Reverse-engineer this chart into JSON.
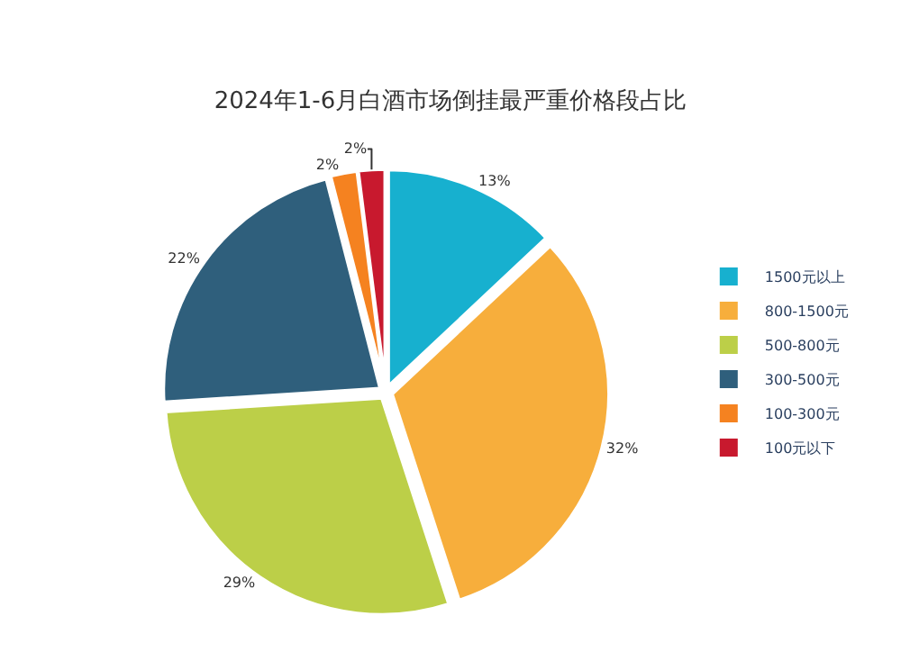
{
  "chart_data": {
    "type": "pie",
    "title": "2024年1-6月白酒市场倒挂最严重价格段占比",
    "categories": [
      "1500元以上",
      "800-1500元",
      "500-800元",
      "300-500元",
      "100-300元",
      "100元以下"
    ],
    "values": [
      13,
      32,
      29,
      22,
      2,
      2
    ],
    "colors": [
      "#17b0cf",
      "#f7ae3c",
      "#bccf48",
      "#2f5f7c",
      "#f58220",
      "#c8192e"
    ],
    "value_labels": [
      "13%",
      "32%",
      "29%",
      "22%",
      "2%",
      "2%"
    ],
    "legend": "right"
  }
}
